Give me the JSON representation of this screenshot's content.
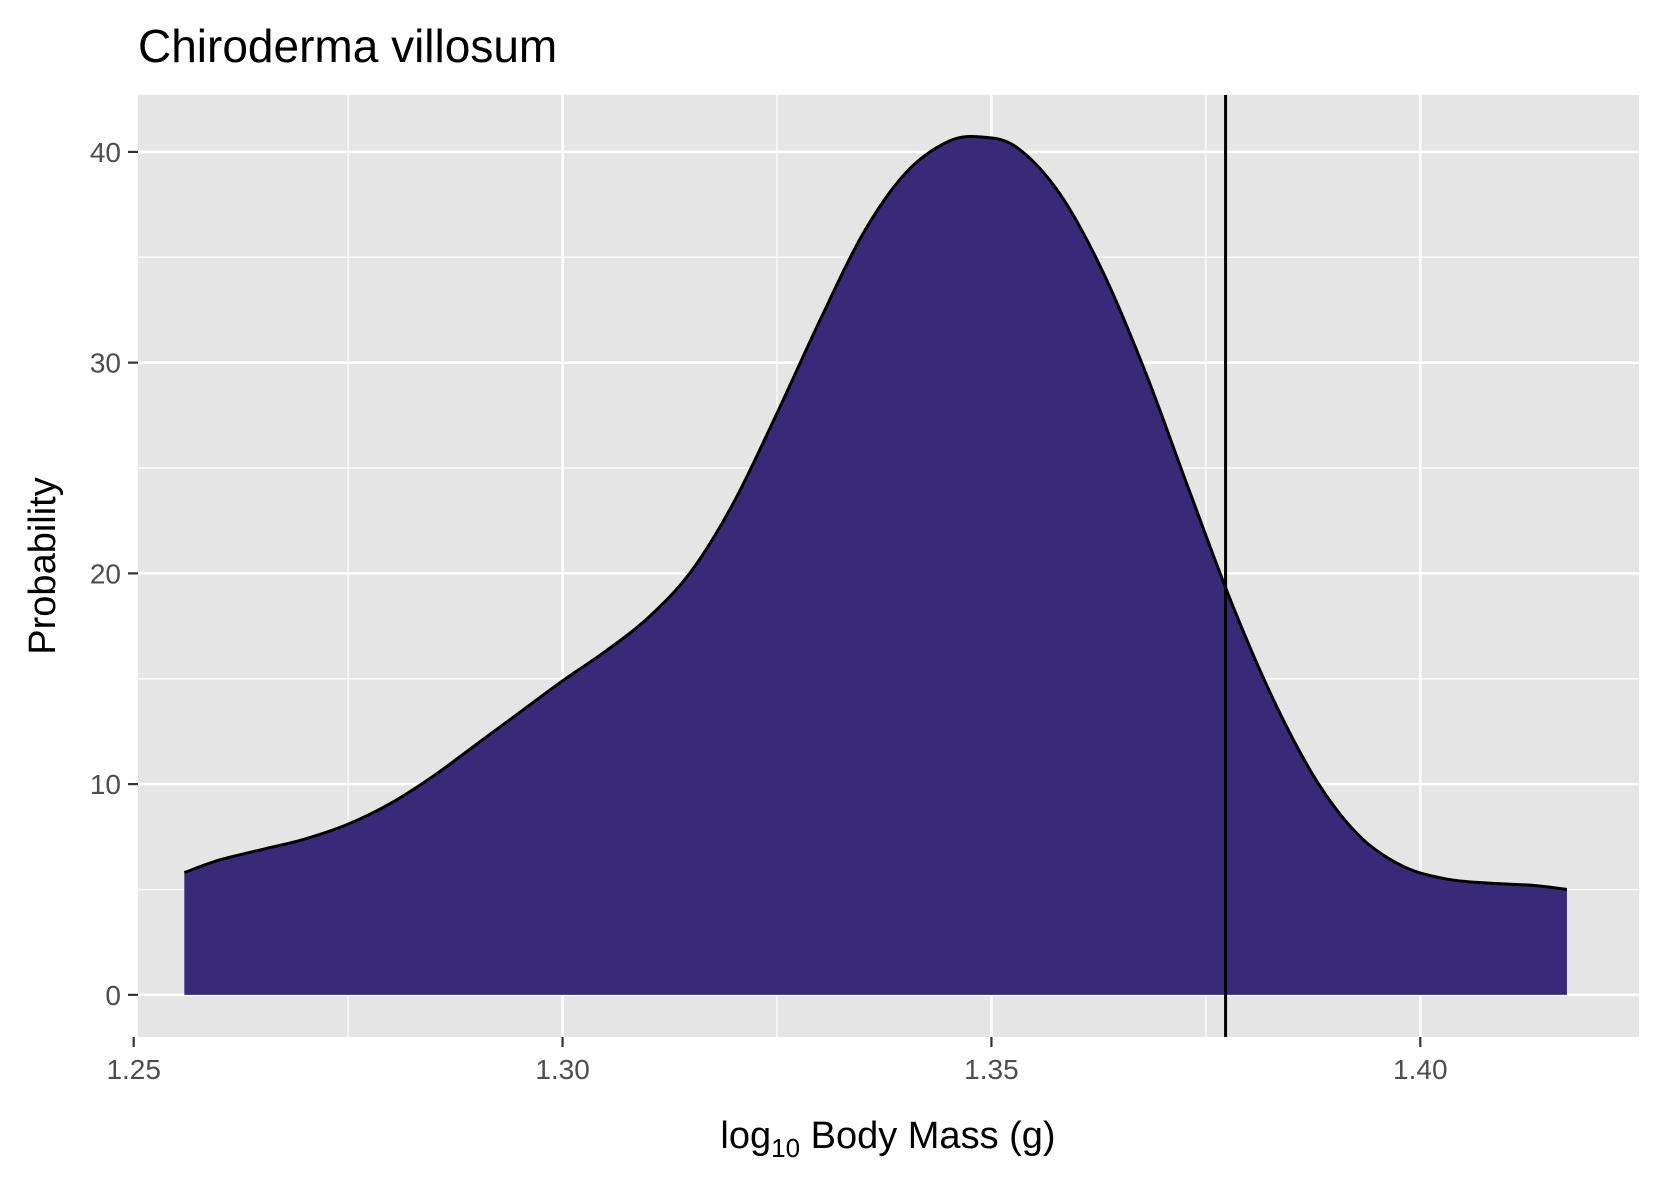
{
  "chart_data": {
    "type": "area",
    "title": "Chiroderma villosum",
    "xlabel": {
      "prefix": "log",
      "subscript": "10",
      "suffix": " Body Mass (g)"
    },
    "ylabel": "Probability",
    "xlim": [
      1.2505,
      1.4255
    ],
    "ylim": [
      -2.0,
      42.7
    ],
    "x_ticks": [
      1.25,
      1.3,
      1.35,
      1.4
    ],
    "x_tick_labels": [
      "1.25",
      "1.30",
      "1.35",
      "1.40"
    ],
    "y_ticks": [
      0,
      10,
      20,
      30,
      40
    ],
    "y_tick_labels": [
      "0",
      "10",
      "20",
      "30",
      "40"
    ],
    "grid": true,
    "legend": "none",
    "series": [
      {
        "x": [
          1.2559,
          1.26,
          1.265,
          1.27,
          1.275,
          1.28,
          1.285,
          1.29,
          1.295,
          1.3,
          1.305,
          1.31,
          1.315,
          1.32,
          1.325,
          1.33,
          1.335,
          1.34,
          1.345,
          1.349,
          1.353,
          1.358,
          1.363,
          1.368,
          1.373,
          1.378,
          1.383,
          1.388,
          1.393,
          1.398,
          1.403,
          1.408,
          1.413,
          1.4171
        ],
        "y": [
          5.8,
          6.4,
          6.9,
          7.4,
          8.1,
          9.1,
          10.4,
          11.9,
          13.4,
          14.9,
          16.3,
          17.9,
          20.1,
          23.4,
          27.6,
          32.0,
          36.1,
          39.0,
          40.5,
          40.7,
          40.2,
          38.0,
          34.3,
          29.5,
          24.0,
          18.6,
          13.9,
          10.1,
          7.5,
          6.1,
          5.5,
          5.3,
          5.2,
          5.0
        ]
      }
    ],
    "vline": 1.3773,
    "colors": {
      "fill": "#382a78",
      "outline": "#000000",
      "panel": "#e5e5e5",
      "grid": "#ffffff",
      "tick_text": "#4d4d4d"
    }
  }
}
